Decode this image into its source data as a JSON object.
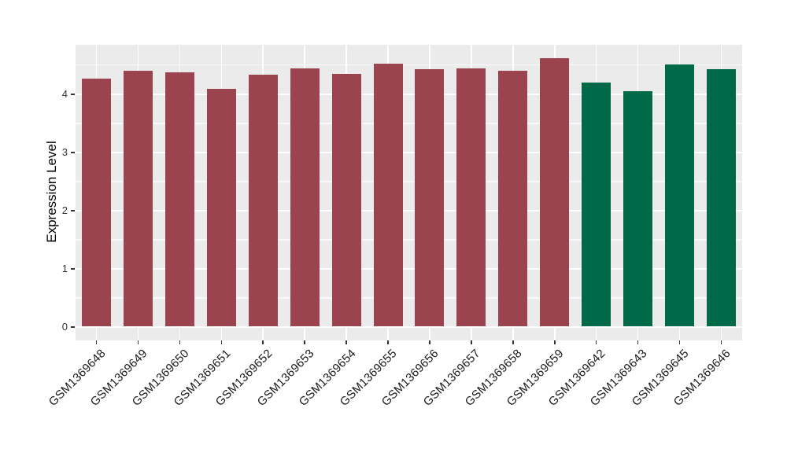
{
  "figure": {
    "background": "#FFFFFF",
    "panel_background": "#EBEBEB",
    "grid_color": "#FFFFFF",
    "tick_mark_color": "#333333",
    "axis_text_color": "#333333"
  },
  "chart_data": {
    "type": "bar",
    "title": "",
    "xlabel": "",
    "ylabel": "Expression Level",
    "categories": [
      "GSM1369648",
      "GSM1369649",
      "GSM1369650",
      "GSM1369651",
      "GSM1369652",
      "GSM1369653",
      "GSM1369654",
      "GSM1369655",
      "GSM1369656",
      "GSM1369657",
      "GSM1369658",
      "GSM1369659",
      "GSM1369642",
      "GSM1369643",
      "GSM1369645",
      "GSM1369646"
    ],
    "values": [
      4.27,
      4.4,
      4.38,
      4.1,
      4.33,
      4.44,
      4.35,
      4.53,
      4.43,
      4.45,
      4.4,
      4.62,
      4.2,
      4.05,
      4.51,
      4.43
    ],
    "bar_colors": [
      "#9B4450",
      "#9B4450",
      "#9B4450",
      "#9B4450",
      "#9B4450",
      "#9B4450",
      "#9B4450",
      "#9B4450",
      "#9B4450",
      "#9B4450",
      "#9B4450",
      "#9B4450",
      "#006947",
      "#006947",
      "#006947",
      "#006947"
    ],
    "group_colors": {
      "group1": "#9B4450",
      "group2": "#006947"
    },
    "ylim": [
      -0.23,
      4.85
    ],
    "yticks": [
      0,
      1,
      2,
      3,
      4
    ],
    "yticks_minor": [
      0.5,
      1.5,
      2.5,
      3.5,
      4.5
    ],
    "grid": "on",
    "legend": "none"
  }
}
